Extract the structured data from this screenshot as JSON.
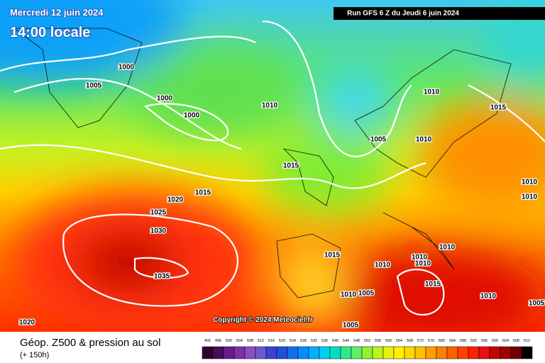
{
  "header": {
    "date": "Mercredi 12 juin 2024",
    "time": "14:00 locale",
    "run": "Run GFS 6 Z du Jeudi 6 juin 2024"
  },
  "copyright": "Copyright © 2024 Meteociel.fr",
  "footer": {
    "title": "Géop. Z500 & pression au sol",
    "lead": "(+ 150h)"
  },
  "isobars": [
    "1000",
    "1005",
    "1000",
    "1000",
    "1010",
    "1010",
    "1015",
    "1005",
    "1010",
    "1015",
    "1015",
    "1020",
    "1025",
    "1030",
    "1010",
    "1010",
    "1010",
    "1015",
    "1010",
    "1010",
    "1010",
    "1035",
    "1015",
    "1010",
    "1005",
    "1010",
    "1005",
    "1020",
    "1005"
  ],
  "legend": {
    "values": [
      492,
      496,
      500,
      504,
      508,
      512,
      516,
      520,
      524,
      528,
      532,
      536,
      540,
      544,
      548,
      552,
      556,
      560,
      564,
      568,
      572,
      576,
      580,
      584,
      588,
      592,
      596,
      600,
      604,
      608,
      612
    ],
    "colors": [
      "#300030",
      "#4b0a5a",
      "#6a1b8a",
      "#7e2fa8",
      "#8b4fc4",
      "#6a5acd",
      "#4040d0",
      "#2050e0",
      "#1070f0",
      "#0090f8",
      "#00b0ff",
      "#00d0f0",
      "#00e0c0",
      "#30e890",
      "#60f060",
      "#90f030",
      "#c0f020",
      "#e8f010",
      "#fff000",
      "#ffd800",
      "#ffc000",
      "#ffa000",
      "#ff8000",
      "#ff6000",
      "#ff4000",
      "#ff2000",
      "#e81010",
      "#c80000",
      "#a00000",
      "#700000",
      "#000000"
    ]
  }
}
